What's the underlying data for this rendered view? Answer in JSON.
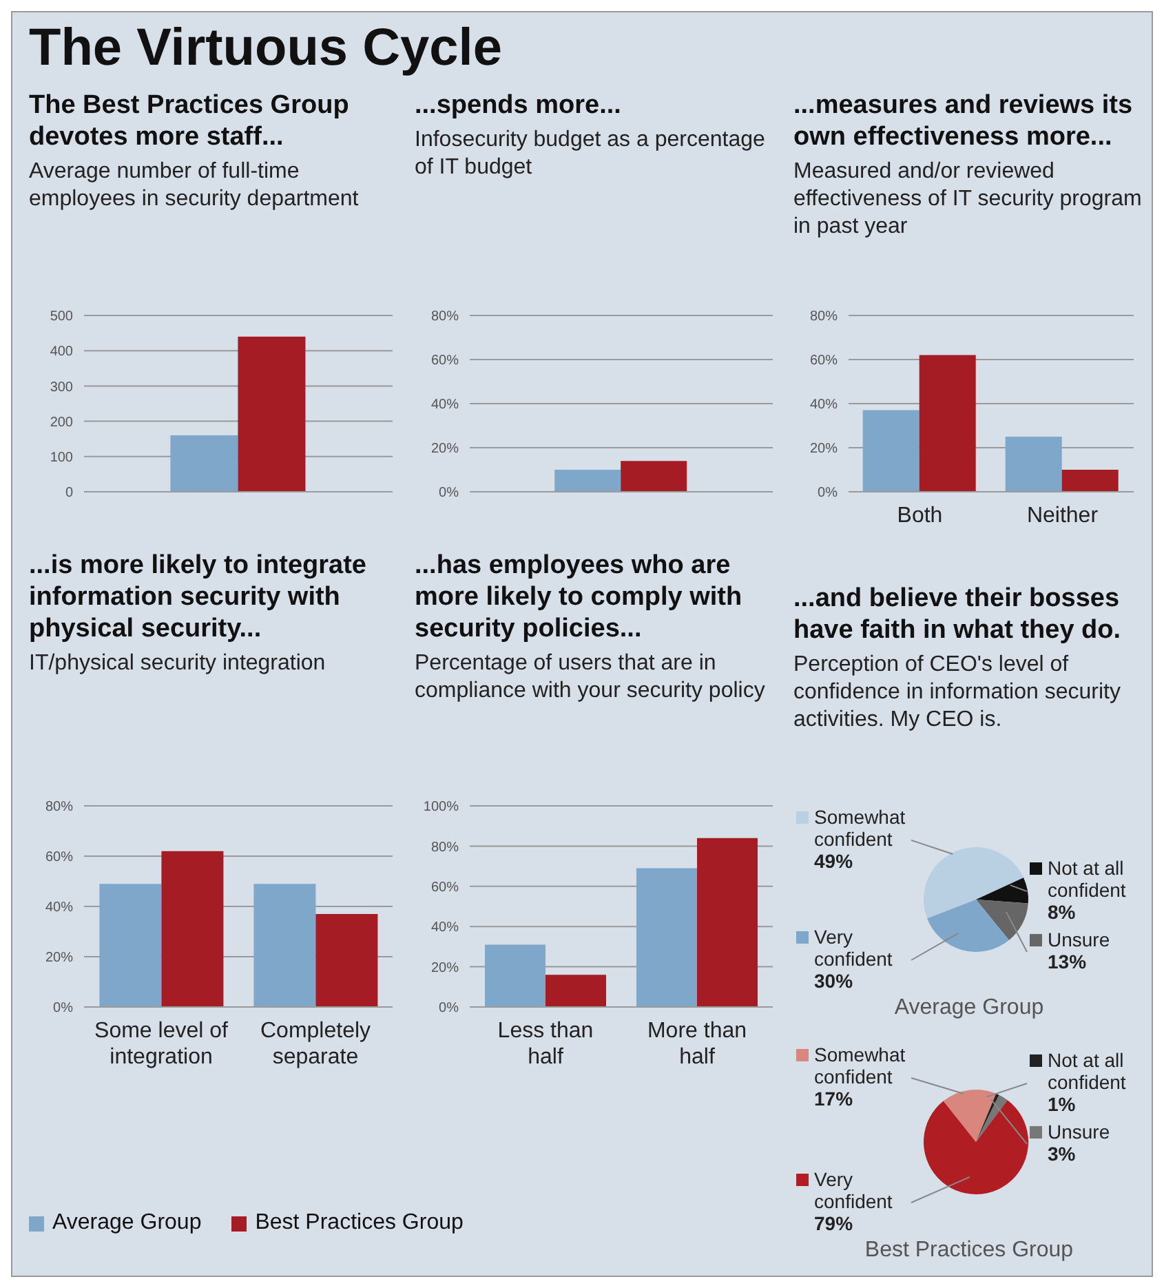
{
  "chart_data": [
    {
      "type": "other",
      "title": "The Virtuous Cycle"
    },
    {
      "type": "bar",
      "title": "The Best Practices Group devotes more staff...",
      "subtitle": "Average number of full-time employees in security department",
      "categories": [
        null
      ],
      "series": [
        {
          "color": "#7fa7c9",
          "values": [
            160
          ]
        },
        {
          "color": "#a51c24",
          "values": [
            440
          ]
        }
      ],
      "ylim": [
        0,
        500
      ],
      "yticks": [
        0,
        100,
        200,
        300,
        400,
        500
      ],
      "grid": "y"
    },
    {
      "type": "bar",
      "title": "...spends more...",
      "subtitle": "Infosecurity budget as a percentage of IT budget",
      "categories": [
        null
      ],
      "series": [
        {
          "color": "#7fa7c9",
          "values": [
            10
          ]
        },
        {
          "color": "#a51c24",
          "values": [
            14
          ]
        }
      ],
      "ylim": [
        0,
        80
      ],
      "yticks": [
        {
          "value": 0,
          "label": "0%"
        },
        {
          "value": 20,
          "label": "20%"
        },
        {
          "value": 40,
          "label": "40%"
        },
        {
          "value": 60,
          "label": "60%"
        },
        {
          "value": 80,
          "label": "80%"
        }
      ],
      "grid": "y"
    },
    {
      "type": "bar",
      "title": "...measures and reviews its own effectiveness more...",
      "subtitle": "Measured and/or reviewed effectiveness of IT security program in past year",
      "categories": [
        "Both",
        "Neither"
      ],
      "series": [
        {
          "color": "#7fa7c9",
          "values": [
            37,
            25
          ]
        },
        {
          "color": "#a51c24",
          "values": [
            62,
            10
          ]
        }
      ],
      "ylim": [
        0,
        80
      ],
      "yticks": [
        {
          "value": 0,
          "label": "0%"
        },
        {
          "value": 20,
          "label": "20%"
        },
        {
          "value": 40,
          "label": "40%"
        },
        {
          "value": 60,
          "label": "60%"
        },
        {
          "value": 80,
          "label": "80%"
        }
      ],
      "grid": "y"
    },
    {
      "type": "bar",
      "title": "...is more likely to integrate information security with physical security...",
      "subtitle": "IT/physical security integration",
      "categories": [
        "Some level of integration",
        "Completely separate"
      ],
      "series": [
        {
          "name": "Average Group",
          "color": "#7fa7c9",
          "values": [
            49,
            49
          ]
        },
        {
          "name": "Best Practices Group",
          "color": "#a51c24",
          "values": [
            62,
            37
          ]
        }
      ],
      "ylim": [
        0,
        80
      ],
      "yticks": [
        {
          "value": 0,
          "label": "0%"
        },
        {
          "value": 20,
          "label": "20%"
        },
        {
          "value": 40,
          "label": "40%"
        },
        {
          "value": 60,
          "label": "60%"
        },
        {
          "value": 80,
          "label": "80%"
        }
      ],
      "grid": "y",
      "legend": "bottom"
    },
    {
      "type": "bar",
      "title": "...has employees who are more likely to comply with security policies...",
      "subtitle": "Percentage of users that are in compliance with your security policy",
      "categories": [
        "Less than half",
        "More than half"
      ],
      "series": [
        {
          "color": "#7fa7c9",
          "values": [
            31,
            69
          ]
        },
        {
          "color": "#a51c24",
          "values": [
            16,
            84
          ]
        }
      ],
      "ylim": [
        0,
        100
      ],
      "yticks": [
        {
          "value": 0,
          "label": "0%"
        },
        {
          "value": 20,
          "label": "20%"
        },
        {
          "value": 40,
          "label": "40%"
        },
        {
          "value": 60,
          "label": "60%"
        },
        {
          "value": 80,
          "label": "80%"
        },
        {
          "value": 100,
          "label": "100%"
        }
      ],
      "grid": "y"
    },
    {
      "type": "pie",
      "title": "...and believe their bosses have faith in what they do.",
      "subtitle": "Perception of CEO's level of confidence in information security activities. My CEO is.",
      "xlabel": "Average Group",
      "categories": [
        "Somewhat confident",
        "Not at all confident",
        "Unsure",
        "Very confident"
      ],
      "values": [
        49,
        8,
        13,
        30
      ],
      "colors": [
        "#b9cfe2",
        "#111111",
        "#666666",
        "#7fa7c9"
      ],
      "value_labels": [
        "49%",
        "8%",
        "13%",
        "30%"
      ],
      "legend": "top left"
    },
    {
      "type": "pie",
      "xlabel": "Best Practices Group",
      "categories": [
        "Somewhat confident",
        "Not at all confident",
        "Unsure",
        "Very confident"
      ],
      "values": [
        17,
        1,
        3,
        79
      ],
      "colors": [
        "#d9877e",
        "#222222",
        "#777777",
        "#b01e23"
      ],
      "value_labels": [
        "17%",
        "1%",
        "3%",
        "79%"
      ],
      "legend": "top left"
    }
  ]
}
